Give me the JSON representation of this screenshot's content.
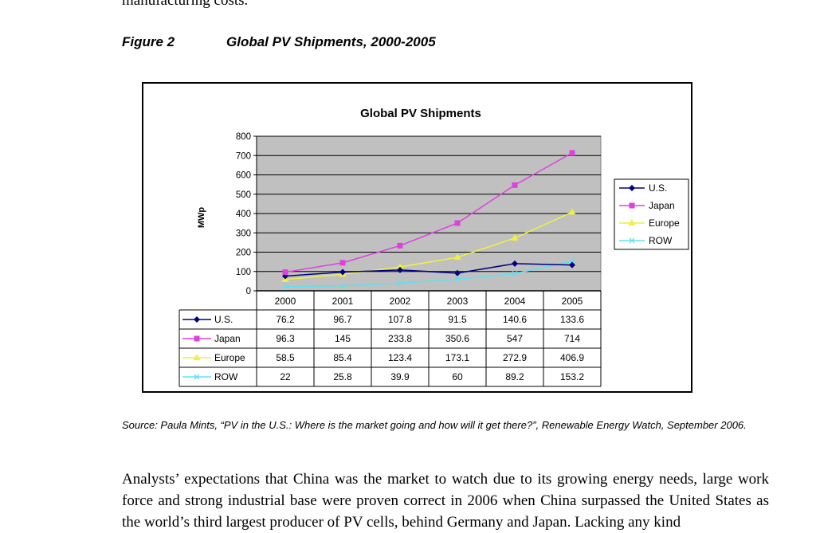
{
  "page": {
    "clipped_top_text": "manufacturing costs.",
    "figure_label": "Figure 2",
    "figure_title": "Global PV Shipments, 2000-2005",
    "source_text": "Source:  Paula Mints, “PV in the U.S.: Where is the market going and how will it get there?”, Renewable Energy Watch, September 2006.",
    "paragraph_text": "Analysts’ expectations that China was the market to watch due to its growing energy needs, large work force and strong industrial base were proven correct in 2006 when China surpassed the United States as the world’s third largest producer of PV cells, behind Germany and Japan. Lacking any kind"
  },
  "chart_data": {
    "type": "line",
    "title": "Global PV Shipments",
    "xlabel": "",
    "ylabel": "MWp",
    "ylim": [
      0,
      800
    ],
    "yticks": [
      0,
      100,
      200,
      300,
      400,
      500,
      600,
      700,
      800
    ],
    "categories": [
      "2000",
      "2001",
      "2002",
      "2003",
      "2004",
      "2005"
    ],
    "grid": true,
    "legend_position": "right",
    "series": [
      {
        "name": "U.S.",
        "values": [
          76.2,
          96.7,
          107.8,
          91.5,
          140.6,
          133.6
        ],
        "display": [
          "76.2",
          "96.7",
          "107.8",
          "91.5",
          "140.6",
          "133.6"
        ],
        "color": "#000080",
        "marker": "diamond"
      },
      {
        "name": "Japan",
        "values": [
          96.3,
          145,
          233.8,
          350.6,
          547,
          714
        ],
        "display": [
          "96.3",
          "145",
          "233.8",
          "350.6",
          "547",
          "714"
        ],
        "color": "#e040e0",
        "marker": "square"
      },
      {
        "name": "Europe",
        "values": [
          58.5,
          85.4,
          123.4,
          173.1,
          272.9,
          406.9
        ],
        "display": [
          "58.5",
          "85.4",
          "123.4",
          "173.1",
          "272.9",
          "406.9"
        ],
        "color": "#f0f040",
        "marker": "triangle"
      },
      {
        "name": "ROW",
        "values": [
          22,
          25.8,
          39.9,
          60,
          89.2,
          153.2
        ],
        "display": [
          "22",
          "25.8",
          "39.9",
          "60",
          "89.2",
          "153.2"
        ],
        "color": "#60e0f0",
        "marker": "x"
      }
    ]
  }
}
